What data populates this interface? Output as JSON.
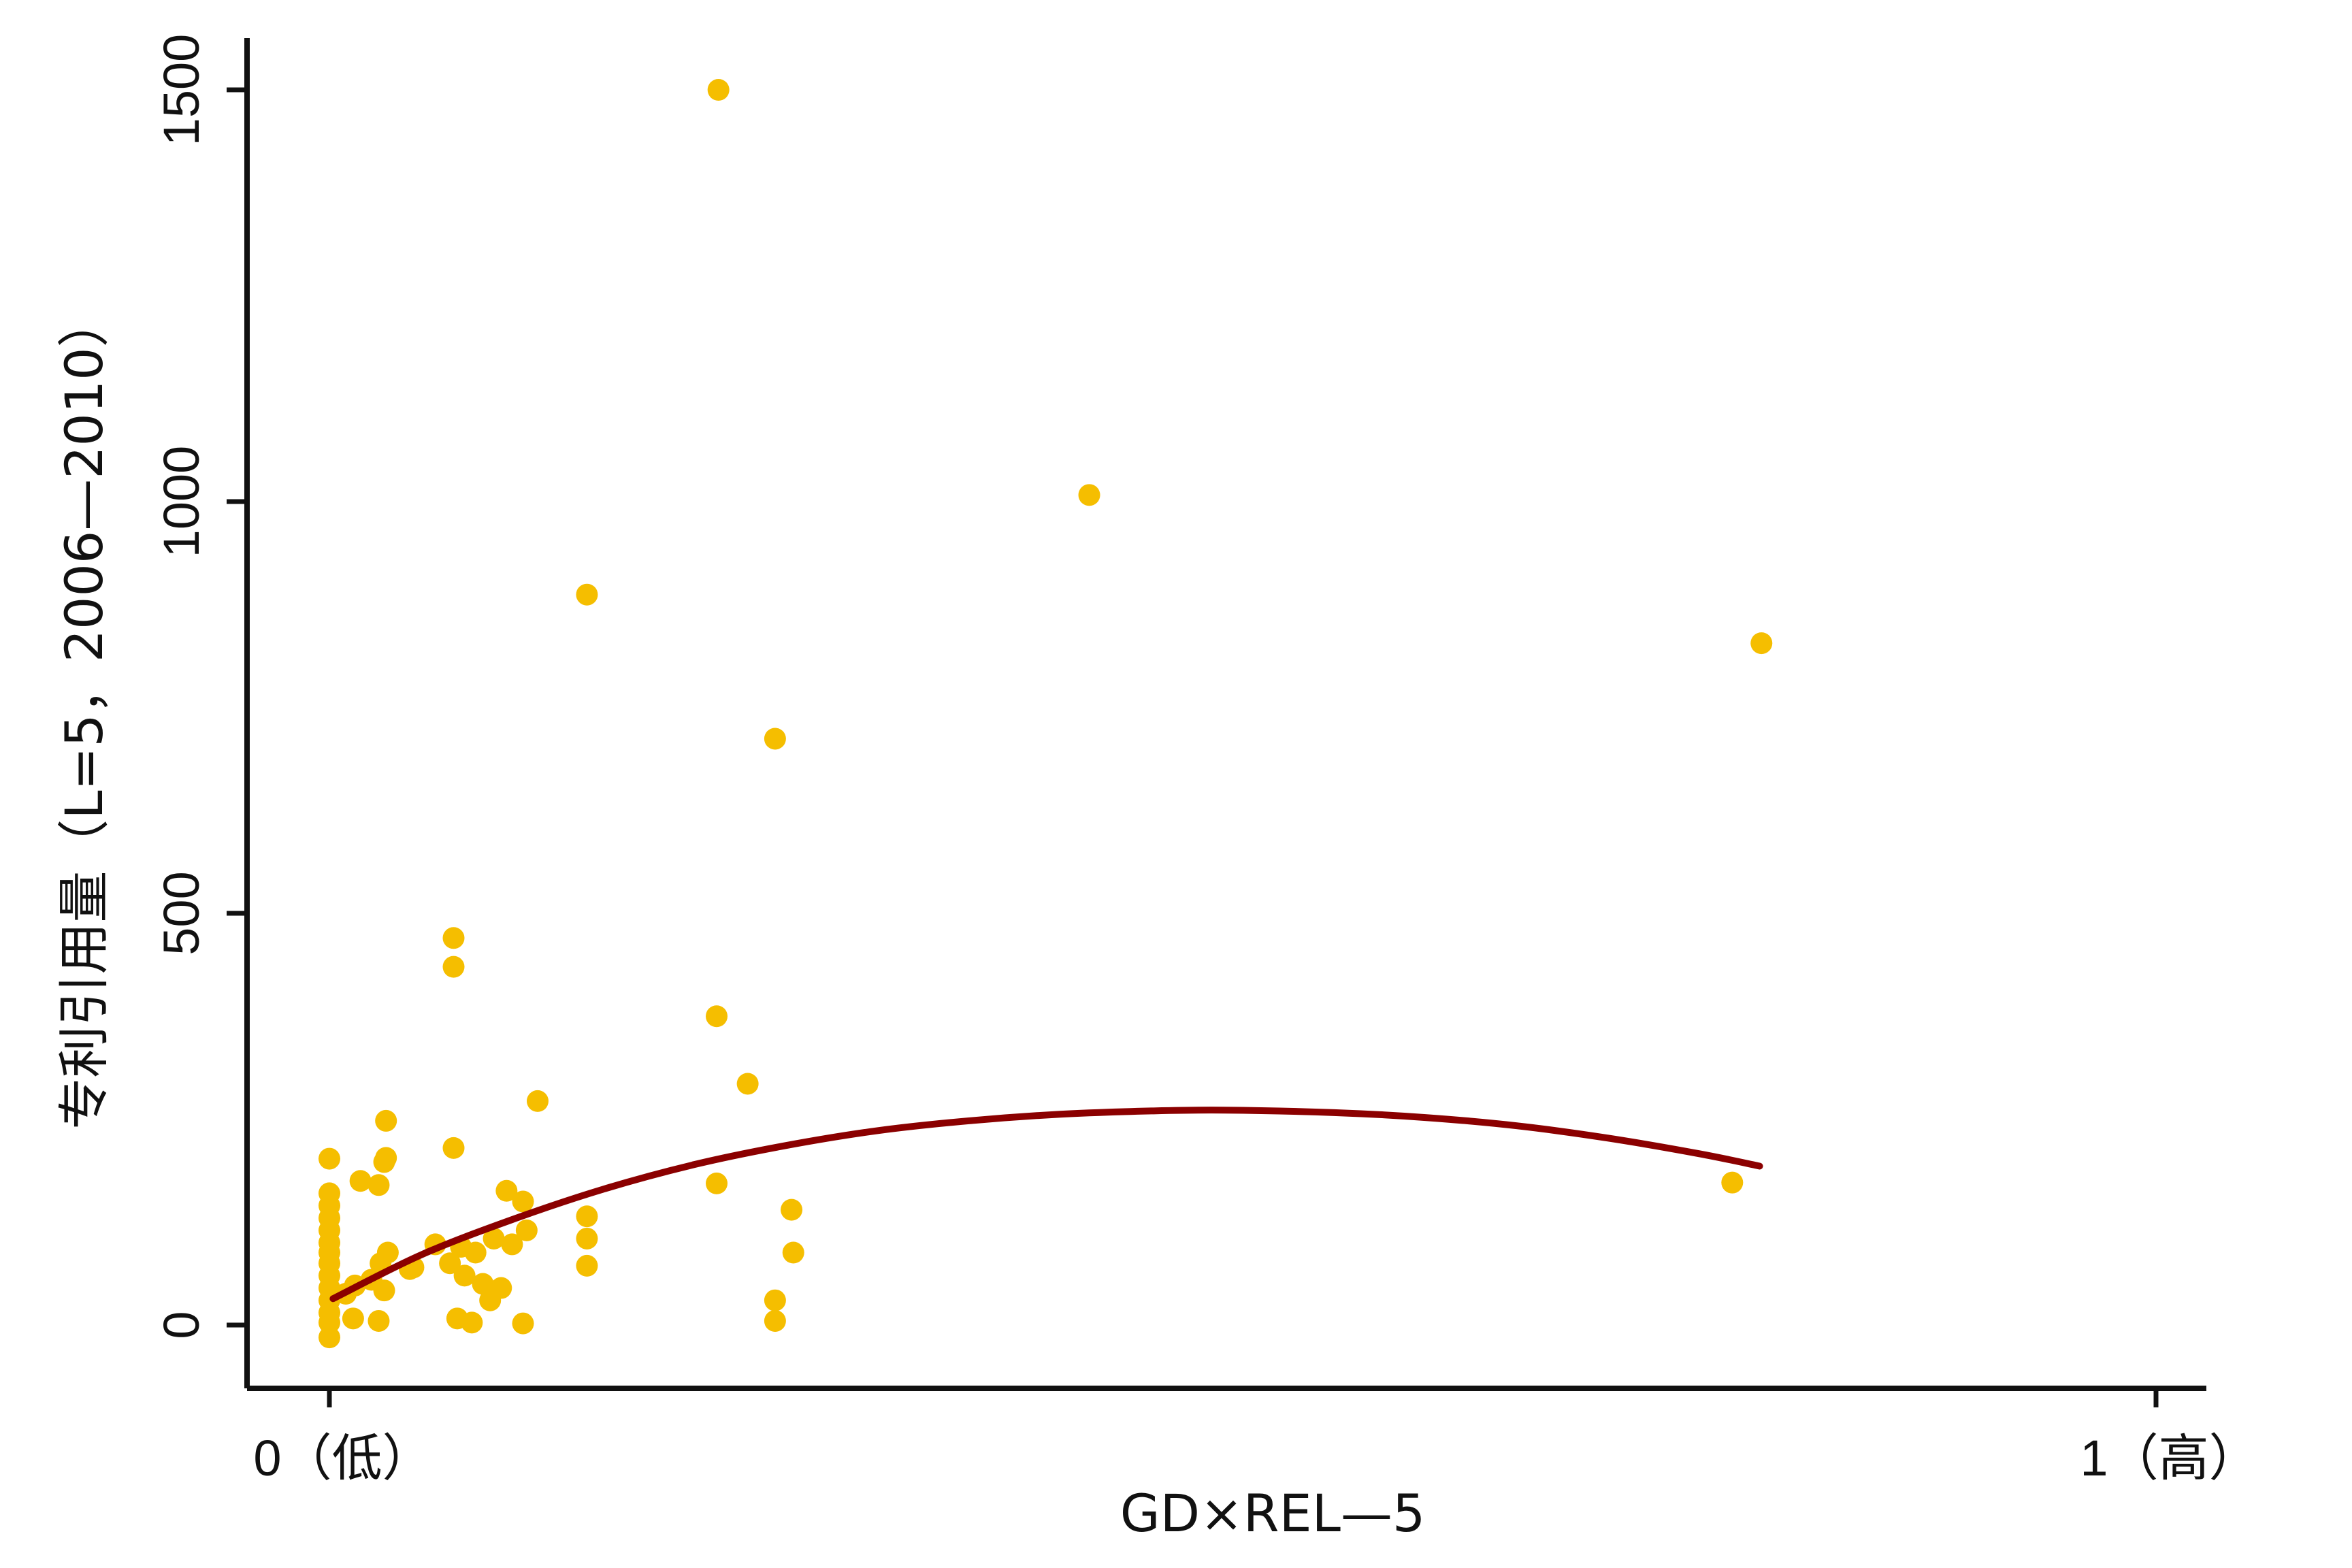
{
  "chart_data": {
    "type": "scatter",
    "xlabel": "GD×REL—5",
    "ylabel": "专利引用量（L=5，2006—2010）",
    "xlim": [
      0,
      1
    ],
    "ylim": [
      -75,
      1570
    ],
    "x_ticks": [
      {
        "value": 0,
        "label": "0（低）"
      },
      {
        "value": 1,
        "label": "1（高）"
      }
    ],
    "y_ticks": [
      {
        "value": 0,
        "label": "0"
      },
      {
        "value": 500,
        "label": "500"
      },
      {
        "value": 1000,
        "label": "1000"
      },
      {
        "value": 1500,
        "label": "1500"
      }
    ],
    "grid": false,
    "legend": "none",
    "colors": {
      "points": "#F5BE00",
      "fit_line": "#8B0000",
      "axis": "#111111"
    },
    "series": [
      {
        "type": "scatter",
        "points": [
          {
            "x": 0.213,
            "y": 1500
          },
          {
            "x": 0.416,
            "y": 1008
          },
          {
            "x": 0.141,
            "y": 887
          },
          {
            "x": 0.784,
            "y": 828
          },
          {
            "x": 0.244,
            "y": 712
          },
          {
            "x": 0.068,
            "y": 470
          },
          {
            "x": 0.068,
            "y": 435
          },
          {
            "x": 0.212,
            "y": 375
          },
          {
            "x": 0.229,
            "y": 293
          },
          {
            "x": 0.114,
            "y": 272
          },
          {
            "x": 0.031,
            "y": 248
          },
          {
            "x": 0.031,
            "y": 203
          },
          {
            "x": 0.03,
            "y": 198
          },
          {
            "x": 0.068,
            "y": 215
          },
          {
            "x": 0.0,
            "y": 202
          },
          {
            "x": 0.017,
            "y": 175
          },
          {
            "x": 0.027,
            "y": 170
          },
          {
            "x": 0.212,
            "y": 172
          },
          {
            "x": 0.768,
            "y": 173
          },
          {
            "x": 0.097,
            "y": 163
          },
          {
            "x": 0.106,
            "y": 150
          },
          {
            "x": 0.253,
            "y": 140
          },
          {
            "x": 0.141,
            "y": 132
          },
          {
            "x": 0.141,
            "y": 105
          },
          {
            "x": 0.0,
            "y": 160
          },
          {
            "x": 0.0,
            "y": 145
          },
          {
            "x": 0.0,
            "y": 130
          },
          {
            "x": 0.0,
            "y": 115
          },
          {
            "x": 0.0,
            "y": 100
          },
          {
            "x": 0.0,
            "y": 88
          },
          {
            "x": 0.0,
            "y": 75
          },
          {
            "x": 0.0,
            "y": 60
          },
          {
            "x": 0.0,
            "y": 45
          },
          {
            "x": 0.0,
            "y": 30
          },
          {
            "x": 0.0,
            "y": 15
          },
          {
            "x": 0.0,
            "y": 3
          },
          {
            "x": 0.0,
            "y": -15
          },
          {
            "x": 0.032,
            "y": 88
          },
          {
            "x": 0.028,
            "y": 75
          },
          {
            "x": 0.044,
            "y": 68
          },
          {
            "x": 0.023,
            "y": 55
          },
          {
            "x": 0.03,
            "y": 42
          },
          {
            "x": 0.014,
            "y": 48
          },
          {
            "x": 0.009,
            "y": 38
          },
          {
            "x": 0.013,
            "y": 8
          },
          {
            "x": 0.027,
            "y": 5
          },
          {
            "x": 0.058,
            "y": 98
          },
          {
            "x": 0.072,
            "y": 95
          },
          {
            "x": 0.08,
            "y": 88
          },
          {
            "x": 0.09,
            "y": 105
          },
          {
            "x": 0.066,
            "y": 75
          },
          {
            "x": 0.074,
            "y": 60
          },
          {
            "x": 0.084,
            "y": 50
          },
          {
            "x": 0.094,
            "y": 45
          },
          {
            "x": 0.07,
            "y": 8
          },
          {
            "x": 0.078,
            "y": 3
          },
          {
            "x": 0.088,
            "y": 30
          },
          {
            "x": 0.1,
            "y": 98
          },
          {
            "x": 0.108,
            "y": 115
          },
          {
            "x": 0.106,
            "y": 2
          },
          {
            "x": 0.141,
            "y": 72
          },
          {
            "x": 0.244,
            "y": 30
          },
          {
            "x": 0.244,
            "y": 5
          },
          {
            "x": 0.254,
            "y": 88
          },
          {
            "x": 0.046,
            "y": 70
          }
        ]
      },
      {
        "type": "line",
        "name": "",
        "points": [
          {
            "x": 0.002,
            "y": 32
          },
          {
            "x": 0.05,
            "y": 85
          },
          {
            "x": 0.1,
            "y": 128
          },
          {
            "x": 0.15,
            "y": 165
          },
          {
            "x": 0.2,
            "y": 195
          },
          {
            "x": 0.25,
            "y": 218
          },
          {
            "x": 0.3,
            "y": 236
          },
          {
            "x": 0.35,
            "y": 248
          },
          {
            "x": 0.4,
            "y": 256
          },
          {
            "x": 0.45,
            "y": 260
          },
          {
            "x": 0.49,
            "y": 261
          },
          {
            "x": 0.55,
            "y": 258
          },
          {
            "x": 0.6,
            "y": 252
          },
          {
            "x": 0.65,
            "y": 242
          },
          {
            "x": 0.7,
            "y": 227
          },
          {
            "x": 0.75,
            "y": 208
          },
          {
            "x": 0.783,
            "y": 193
          }
        ]
      }
    ]
  }
}
